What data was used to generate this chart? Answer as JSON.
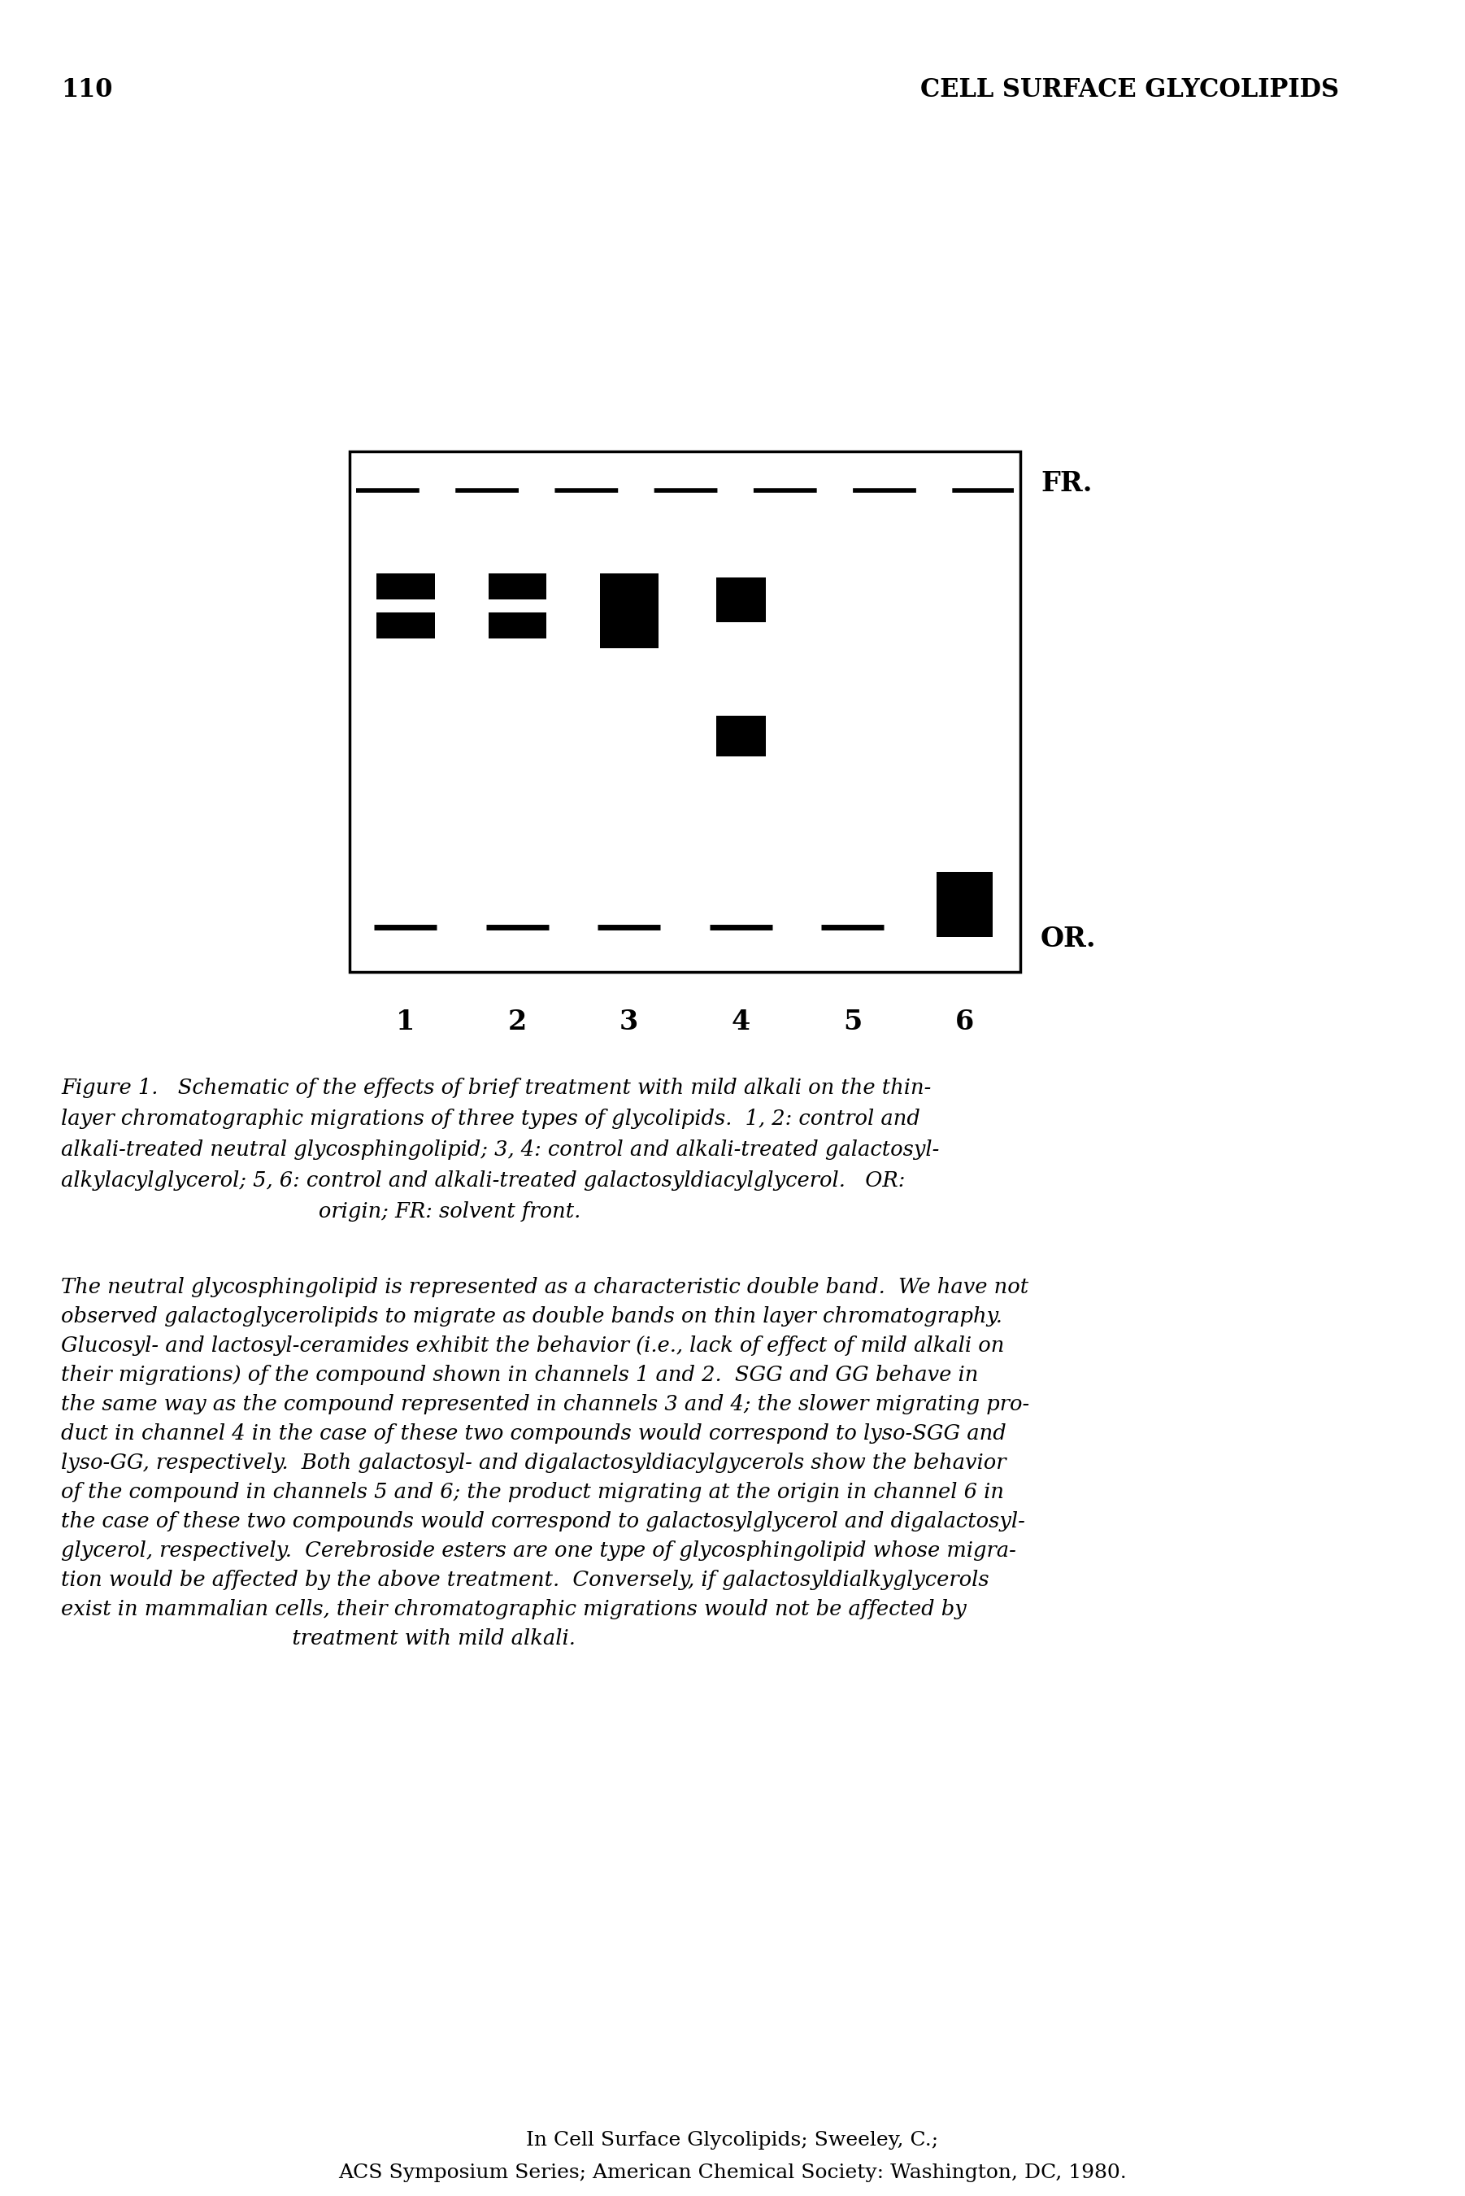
{
  "page_number": "110",
  "page_header": "CELL SURFACE GLYCOLIPIDS",
  "background_color": "#ffffff",
  "fr_label": "FR.",
  "or_label": "OR.",
  "channel_labels": [
    "1",
    "2",
    "3",
    "4",
    "5",
    "6"
  ],
  "footer_text1": "In Cell Surface Glycolipids; Sweeley, C.;",
  "footer_text2": "ACS Symposium Series; American Chemical Society: Washington, DC, 1980."
}
